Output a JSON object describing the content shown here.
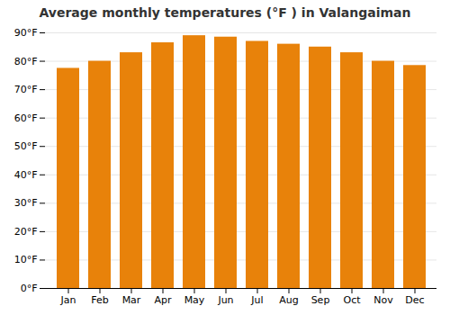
{
  "chart_data": {
    "type": "bar",
    "title": "Average monthly temperatures (°F ) in Valangaiman",
    "categories": [
      "Jan",
      "Feb",
      "Mar",
      "Apr",
      "May",
      "Jun",
      "Jul",
      "Aug",
      "Sep",
      "Oct",
      "Nov",
      "Dec"
    ],
    "values": [
      77.5,
      80,
      83,
      86.5,
      89,
      88.5,
      87,
      86,
      85,
      83,
      80,
      78.5
    ],
    "color": "#E8820A",
    "ylim": [
      0,
      90
    ],
    "yticks": [
      {
        "value": 0,
        "label": "0°F"
      },
      {
        "value": 10,
        "label": "10°F"
      },
      {
        "value": 20,
        "label": "20°F"
      },
      {
        "value": 30,
        "label": "30°F"
      },
      {
        "value": 40,
        "label": "40°F"
      },
      {
        "value": 50,
        "label": "50°F"
      },
      {
        "value": 60,
        "label": "60°F"
      },
      {
        "value": 70,
        "label": "70°F"
      },
      {
        "value": 80,
        "label": "80°F"
      },
      {
        "value": 90,
        "label": "90°F"
      }
    ],
    "grid": true
  }
}
